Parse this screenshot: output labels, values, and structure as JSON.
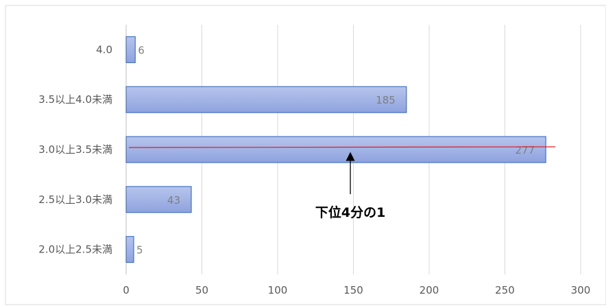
{
  "chart_data": {
    "type": "bar",
    "orientation": "horizontal",
    "categories": [
      "4.0",
      "3.5以上4.0未満",
      "3.0以上3.5未満",
      "2.5以上3.0未満",
      "2.0以上2.5未満"
    ],
    "values": [
      6,
      185,
      277,
      43,
      5
    ],
    "xlim": [
      0,
      300
    ],
    "xticks": [
      0,
      50,
      100,
      150,
      200,
      250,
      300
    ],
    "grid": true,
    "legend": "none",
    "annotation": {
      "text": "下位4分の1",
      "reference_line_category": "3.0以上3.5未満",
      "line_color": "#e41a1c"
    },
    "colors": {
      "bar_fill_top": "#b7c5ec",
      "bar_fill_bottom": "#8ea2de",
      "bar_edge": "#4472c4",
      "grid": "#d9d9d9",
      "arrow": "#000000"
    }
  }
}
